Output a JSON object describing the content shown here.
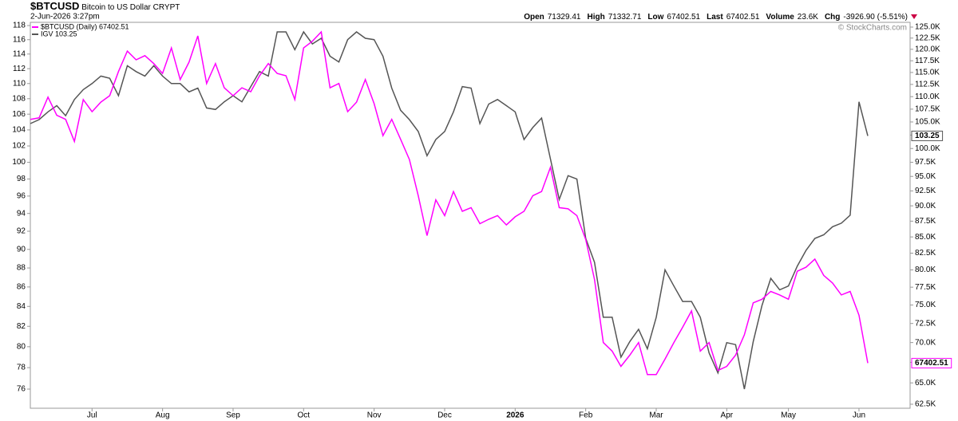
{
  "header": {
    "symbol": "$BTCUSD",
    "name": "Bitcoin to US Dollar",
    "exchange": "CRYPT",
    "date": "2-Jun-2026 3:27pm",
    "quote": [
      {
        "label": "Open",
        "value": 71329.41
      },
      {
        "label": "High",
        "value": 71332.71
      },
      {
        "label": "Low",
        "value": 67402.51
      },
      {
        "label": "Last",
        "value": 67402.51
      },
      {
        "label": "Volume",
        "value": "23.6K"
      },
      {
        "label": "Chg",
        "value": "-3926.90 (-5.51%)"
      }
    ],
    "copyright": "© StockCharts.com"
  },
  "chart_data": {
    "type": "line",
    "log_scale": true,
    "grid": false,
    "categories": [
      null,
      null,
      null,
      null,
      null,
      null,
      null,
      "Jul",
      null,
      null,
      null,
      null,
      null,
      null,
      null,
      "Aug",
      null,
      null,
      null,
      null,
      null,
      null,
      null,
      "Sep",
      null,
      null,
      null,
      null,
      null,
      null,
      null,
      "Oct",
      null,
      null,
      null,
      null,
      null,
      null,
      null,
      "Nov",
      null,
      null,
      null,
      null,
      null,
      null,
      null,
      "Dec",
      null,
      null,
      null,
      null,
      null,
      null,
      null,
      "2026",
      null,
      null,
      null,
      null,
      null,
      null,
      null,
      "Feb",
      null,
      null,
      null,
      null,
      null,
      null,
      null,
      "Mar",
      null,
      null,
      null,
      null,
      null,
      null,
      null,
      "Apr",
      null,
      null,
      null,
      null,
      null,
      null,
      "May",
      null,
      null,
      null,
      null,
      null,
      null,
      null,
      "Jun",
      null
    ],
    "series": [
      {
        "name": "$BTCUSD (Daily) 67402.51",
        "color": "#ff00ff",
        "axis": "y2",
        "values": [
          105500,
          105800,
          109900,
          106300,
          105500,
          101300,
          109400,
          107000,
          108900,
          110200,
          115200,
          119600,
          117700,
          118600,
          116900,
          114800,
          120300,
          113500,
          117200,
          123000,
          112700,
          116900,
          111800,
          110200,
          111800,
          111000,
          114300,
          116900,
          114800,
          114300,
          109400,
          120300,
          121800,
          123900,
          111800,
          112700,
          107000,
          108900,
          113500,
          108600,
          102400,
          105500,
          101700,
          98000,
          91700,
          85200,
          91000,
          88400,
          92400,
          89100,
          89700,
          87100,
          87800,
          88400,
          86900,
          88200,
          89100,
          91700,
          92400,
          96600,
          89700,
          89500,
          88400,
          84600,
          78600,
          70000,
          68900,
          67000,
          68400,
          70000,
          66000,
          66000,
          67900,
          70000,
          72000,
          74200,
          68900,
          70000,
          66500,
          67000,
          68400,
          71000,
          75300,
          75800,
          76900,
          76400,
          75800,
          79800,
          80400,
          81600,
          79200,
          78100,
          76400,
          76900,
          73600,
          67402.51
        ]
      },
      {
        "name": "IGV 103.25",
        "color": "#555555",
        "axis": "y",
        "values": [
          104.8,
          105.3,
          106.3,
          107.1,
          105.8,
          107.9,
          109.2,
          110.0,
          111.0,
          110.7,
          108.4,
          112.4,
          111.6,
          111.0,
          112.4,
          111.0,
          110.0,
          110.0,
          108.9,
          109.4,
          106.8,
          106.6,
          107.6,
          108.4,
          107.6,
          109.6,
          111.6,
          111.0,
          117.1,
          117.1,
          114.6,
          117.1,
          115.4,
          116.2,
          113.7,
          112.9,
          116.0,
          117.1,
          116.2,
          116.0,
          113.7,
          109.4,
          106.5,
          105.3,
          103.8,
          100.8,
          102.8,
          103.8,
          106.3,
          109.6,
          109.4,
          104.8,
          107.3,
          107.9,
          107.1,
          106.3,
          102.8,
          104.3,
          105.5,
          100.4,
          95.6,
          98.4,
          98.0,
          91.2,
          88.6,
          82.9,
          82.9,
          79.0,
          80.5,
          81.7,
          79.8,
          82.9,
          87.8,
          86.1,
          84.5,
          84.5,
          82.9,
          79.4,
          77.5,
          80.4,
          80.2,
          76.0,
          80.5,
          84.1,
          86.9,
          85.7,
          86.1,
          88.2,
          89.9,
          91.2,
          91.6,
          92.5,
          92.9,
          93.8,
          107.6,
          103.25
        ]
      }
    ],
    "ylim": [
      74.26,
      118.46
    ],
    "yticks": [
      76,
      78,
      80,
      82,
      84,
      86,
      88,
      90,
      92,
      94,
      96,
      98,
      100,
      102,
      104,
      106,
      108,
      110,
      112,
      114,
      116,
      118
    ],
    "y2lim": [
      62040,
      126100
    ],
    "y2ticks": [
      {
        "value": 62500,
        "label": "62.5K"
      },
      {
        "value": 65000,
        "label": "65.0K"
      },
      {
        "value": 67500,
        "label": "67.5K"
      },
      {
        "value": 70000,
        "label": "70.0K"
      },
      {
        "value": 72500,
        "label": "72.5K"
      },
      {
        "value": 75000,
        "label": "75.0K"
      },
      {
        "value": 77500,
        "label": "77.5K"
      },
      {
        "value": 80000,
        "label": "80.0K"
      },
      {
        "value": 82500,
        "label": "82.5K"
      },
      {
        "value": 85000,
        "label": "85.0K"
      },
      {
        "value": 87500,
        "label": "87.5K"
      },
      {
        "value": 90000,
        "label": "90.0K"
      },
      {
        "value": 92500,
        "label": "92.5K"
      },
      {
        "value": 95000,
        "label": "95.0K"
      },
      {
        "value": 97500,
        "label": "97.5K"
      },
      {
        "value": 100000,
        "label": "100.0K"
      },
      {
        "value": 102500,
        "label": "102.5K"
      },
      {
        "value": 105000,
        "label": "105.0K"
      },
      {
        "value": 107500,
        "label": "107.5K"
      },
      {
        "value": 110000,
        "label": "110.0K"
      },
      {
        "value": 112500,
        "label": "112.5K"
      },
      {
        "value": 115000,
        "label": "115.0K"
      },
      {
        "value": 117500,
        "label": "117.5K"
      },
      {
        "value": 120000,
        "label": "120.0K"
      },
      {
        "value": 122500,
        "label": "122.5K"
      },
      {
        "value": 125000,
        "label": "125.0K"
      }
    ]
  }
}
